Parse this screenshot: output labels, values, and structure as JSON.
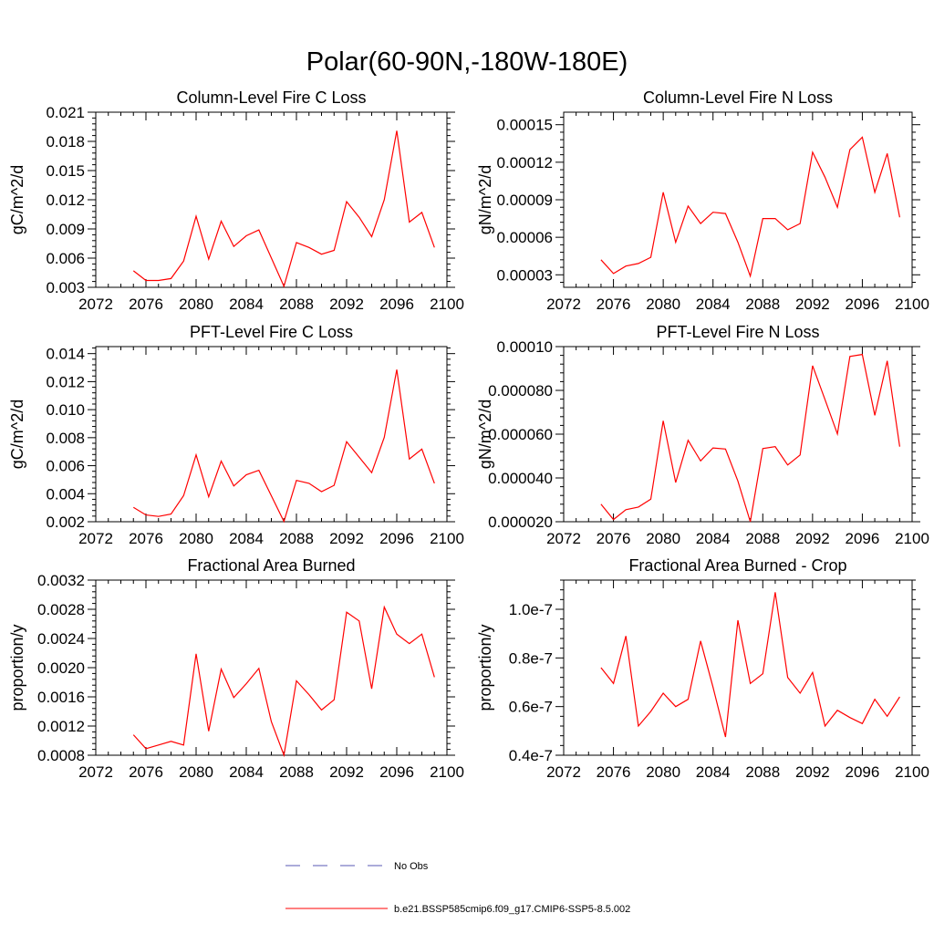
{
  "figure": {
    "title": "Polar(60-90N,-180W-180E)",
    "legend": [
      {
        "label": "No Obs",
        "color": "#5a5ab4",
        "style": "dashed"
      },
      {
        "label": "b.e21.BSSP585cmip6.f09_g17.CMIP6-SSP5-8.5.002",
        "color": "#ff0000",
        "style": "solid"
      }
    ]
  },
  "chart_data": [
    {
      "type": "line",
      "title": "Column-Level Fire C Loss",
      "xlabel": "",
      "ylabel": "gC/m^2/d",
      "xlim": [
        2072,
        2100
      ],
      "ylim": [
        0.003,
        0.021
      ],
      "xticks": [
        "2072",
        "2076",
        "2080",
        "2084",
        "2088",
        "2092",
        "2096",
        "2100"
      ],
      "yticks": [
        "0.003",
        "0.006",
        "0.009",
        "0.012",
        "0.015",
        "0.018",
        "0.021"
      ],
      "x": [
        2075,
        2076,
        2077,
        2078,
        2079,
        2080,
        2081,
        2082,
        2083,
        2084,
        2085,
        2087,
        2088,
        2089,
        2090,
        2091,
        2092,
        2093,
        2094,
        2095,
        2096,
        2097,
        2098,
        2099
      ],
      "series": [
        {
          "color": "#ff0000",
          "values": [
            0.0047,
            0.0037,
            0.0037,
            0.0039,
            0.0057,
            0.0103,
            0.0059,
            0.0098,
            0.0072,
            0.0083,
            0.0089,
            0.0031,
            0.0076,
            0.0071,
            0.0064,
            0.0068,
            0.0118,
            0.0102,
            0.0082,
            0.012,
            0.0191,
            0.0097,
            0.0107,
            0.0071
          ]
        }
      ]
    },
    {
      "type": "line",
      "title": "Column-Level Fire N Loss",
      "xlabel": "",
      "ylabel": "gN/m^2/d",
      "xlim": [
        2072,
        2100
      ],
      "ylim": [
        2e-05,
        0.00016
      ],
      "xticks": [
        "2072",
        "2076",
        "2080",
        "2084",
        "2088",
        "2092",
        "2096",
        "2100"
      ],
      "yticks": [
        "0.00003",
        "0.00006",
        "0.00009",
        "0.00012",
        "0.00015"
      ],
      "x": [
        2075,
        2076,
        2077,
        2078,
        2079,
        2080,
        2081,
        2082,
        2083,
        2084,
        2085,
        2086,
        2087,
        2088,
        2089,
        2090,
        2091,
        2092,
        2093,
        2094,
        2095,
        2096,
        2097,
        2098,
        2099
      ],
      "series": [
        {
          "color": "#ff0000",
          "values": [
            4.2e-05,
            3.1e-05,
            3.7e-05,
            3.9e-05,
            4.4e-05,
            9.6e-05,
            5.6e-05,
            8.5e-05,
            7.1e-05,
            8e-05,
            7.9e-05,
            5.6e-05,
            2.9e-05,
            7.5e-05,
            7.5e-05,
            6.6e-05,
            7.1e-05,
            0.000128,
            0.000108,
            8.4e-05,
            0.00013,
            0.00014,
            9.6e-05,
            0.000127,
            7.6e-05
          ]
        }
      ]
    },
    {
      "type": "line",
      "title": "PFT-Level Fire C Loss",
      "xlabel": "",
      "ylabel": "gC/m^2/d",
      "xlim": [
        2072,
        2100
      ],
      "ylim": [
        0.002,
        0.0145
      ],
      "xticks": [
        "2072",
        "2076",
        "2080",
        "2084",
        "2088",
        "2092",
        "2096",
        "2100"
      ],
      "yticks": [
        "0.002",
        "0.004",
        "0.006",
        "0.008",
        "0.010",
        "0.012",
        "0.014"
      ],
      "x": [
        2075,
        2076,
        2077,
        2078,
        2079,
        2080,
        2081,
        2082,
        2083,
        2084,
        2085,
        2087,
        2088,
        2089,
        2090,
        2091,
        2092,
        2093,
        2094,
        2095,
        2096,
        2097,
        2098,
        2099
      ],
      "series": [
        {
          "color": "#ff0000",
          "values": [
            0.00303,
            0.00248,
            0.00238,
            0.00255,
            0.00386,
            0.00677,
            0.00378,
            0.00633,
            0.00455,
            0.00535,
            0.00567,
            0.00201,
            0.00495,
            0.00474,
            0.00415,
            0.0046,
            0.00771,
            0.00661,
            0.0055,
            0.00802,
            0.01286,
            0.00648,
            0.00718,
            0.00474
          ]
        }
      ]
    },
    {
      "type": "line",
      "title": "PFT-Level Fire N Loss",
      "xlabel": "",
      "ylabel": "gN/m^2/d",
      "xlim": [
        2072,
        2100
      ],
      "ylim": [
        2e-05,
        0.0001
      ],
      "xticks": [
        "2072",
        "2076",
        "2080",
        "2084",
        "2088",
        "2092",
        "2096",
        "2100"
      ],
      "yticks": [
        "0.000020",
        "0.000040",
        "0.000060",
        "0.000080",
        "0.00010"
      ],
      "x": [
        2075,
        2076,
        2077,
        2078,
        2079,
        2080,
        2081,
        2082,
        2083,
        2084,
        2085,
        2086,
        2087,
        2088,
        2089,
        2090,
        2091,
        2092,
        2093,
        2094,
        2095,
        2096,
        2097,
        2098,
        2099
      ],
      "series": [
        {
          "color": "#ff0000",
          "values": [
            2.8e-05,
            2.1e-05,
            2.55e-05,
            2.67e-05,
            3.03e-05,
            6.61e-05,
            3.79e-05,
            5.72e-05,
            4.78e-05,
            5.37e-05,
            5.32e-05,
            3.86e-05,
            2e-05,
            5.34e-05,
            5.43e-05,
            4.59e-05,
            5.05e-05,
            9.13e-05,
            7.58e-05,
            6.01e-05,
            9.55e-05,
            9.64e-05,
            6.86e-05,
            9.35e-05,
            5.43e-05
          ]
        }
      ]
    },
    {
      "type": "line",
      "title": "Fractional Area Burned",
      "xlabel": "",
      "ylabel": "proportion/y",
      "xlim": [
        2072,
        2100
      ],
      "ylim": [
        0.0008,
        0.0032
      ],
      "xticks": [
        "2072",
        "2076",
        "2080",
        "2084",
        "2088",
        "2092",
        "2096",
        "2100"
      ],
      "yticks": [
        "0.0008",
        "0.0012",
        "0.0016",
        "0.0020",
        "0.0024",
        "0.0028",
        "0.0032"
      ],
      "x": [
        2075,
        2076,
        2077,
        2078,
        2079,
        2080,
        2081,
        2082,
        2083,
        2084,
        2085,
        2086,
        2087,
        2088,
        2089,
        2090,
        2091,
        2092,
        2093,
        2094,
        2095,
        2096,
        2097,
        2098,
        2099
      ],
      "series": [
        {
          "color": "#ff0000",
          "values": [
            0.00108,
            0.00089,
            0.00094,
            0.00099,
            0.00094,
            0.00219,
            0.00113,
            0.00198,
            0.00159,
            0.00178,
            0.00199,
            0.00126,
            0.0008,
            0.00182,
            0.00163,
            0.00142,
            0.00156,
            0.00276,
            0.00264,
            0.00171,
            0.00283,
            0.00246,
            0.00233,
            0.00246,
            0.00187
          ]
        }
      ]
    },
    {
      "type": "line",
      "title": "Fractional Area Burned - Crop",
      "xlabel": "",
      "ylabel": "proportion/y",
      "xlim": [
        2072,
        2100
      ],
      "ylim": [
        4e-08,
        1.12e-07
      ],
      "xticks": [
        "2072",
        "2076",
        "2080",
        "2084",
        "2088",
        "2092",
        "2096",
        "2100"
      ],
      "yticks": [
        "0.4e-7",
        "0.6e-7",
        "0.8e-7",
        "1.0e-7"
      ],
      "x": [
        2075,
        2076,
        2077,
        2078,
        2079,
        2080,
        2081,
        2082,
        2083,
        2084,
        2085,
        2086,
        2087,
        2088,
        2089,
        2090,
        2091,
        2092,
        2093,
        2094,
        2095,
        2096,
        2097,
        2098,
        2099
      ],
      "series": [
        {
          "color": "#ff0000",
          "values": [
            7.6e-08,
            6.95e-08,
            8.9e-08,
            5.2e-08,
            5.8e-08,
            6.55e-08,
            6e-08,
            6.3e-08,
            8.7e-08,
            6.8e-08,
            4.75e-08,
            9.55e-08,
            6.95e-08,
            7.35e-08,
            1.07e-07,
            7.2e-08,
            6.55e-08,
            7.4e-08,
            5.2e-08,
            5.85e-08,
            5.55e-08,
            5.3e-08,
            6.3e-08,
            5.6e-08,
            6.4e-08
          ]
        }
      ]
    }
  ]
}
